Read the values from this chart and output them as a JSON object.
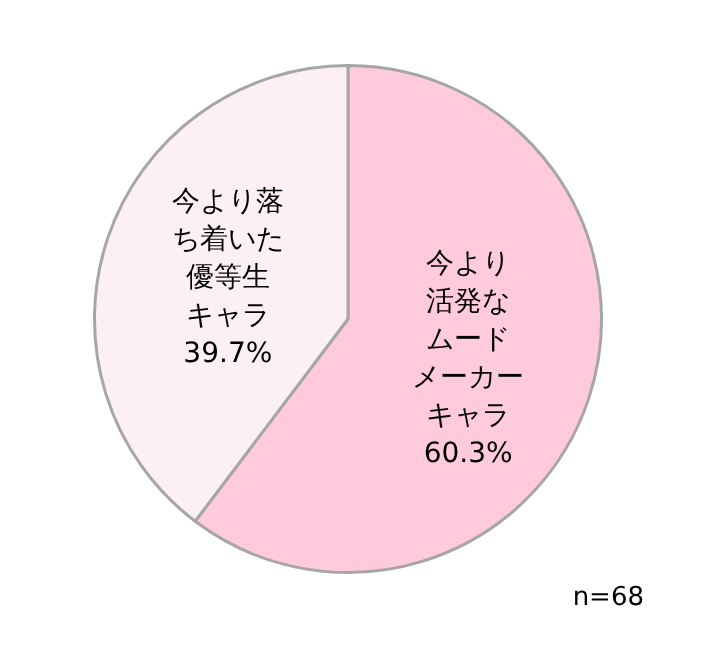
{
  "chart_data": {
    "type": "pie",
    "categories": [
      "今より活発なムードメーカーキャラ",
      "今より落ち着いた優等生キャラ"
    ],
    "values": [
      60.3,
      39.7
    ],
    "value_labels": [
      "60.3%",
      "39.7%"
    ],
    "colors": [
      "#ffcadb",
      "#fdf0f4"
    ],
    "legend": false,
    "annotations": [
      "n=68"
    ]
  }
}
